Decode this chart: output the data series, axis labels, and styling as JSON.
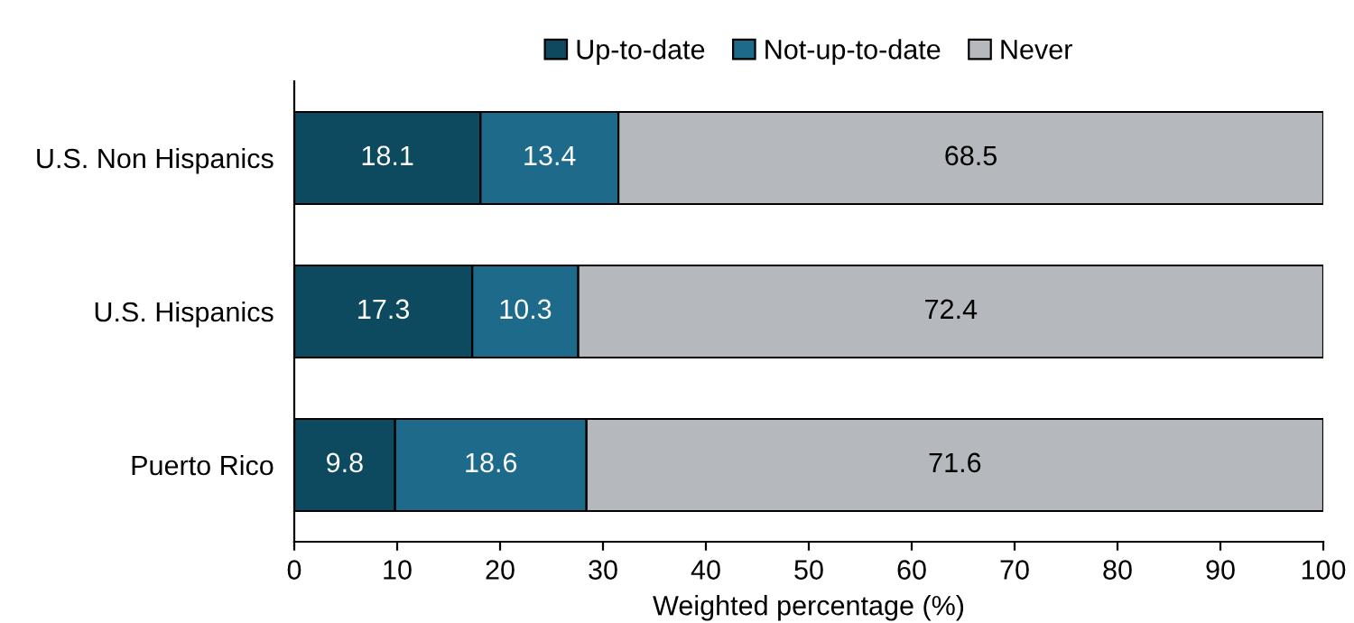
{
  "chart_data": {
    "type": "bar",
    "orientation": "horizontal",
    "stacked": true,
    "categories": [
      "U.S. Non Hispanics",
      "U.S. Hispanics",
      "Puerto Rico"
    ],
    "series": [
      {
        "name": "Up-to-date",
        "color": "#0e4a5f",
        "values": [
          18.1,
          17.3,
          9.8
        ]
      },
      {
        "name": "Not-up-to-date",
        "color": "#1d6a8b",
        "values": [
          13.4,
          10.3,
          18.6
        ]
      },
      {
        "name": "Never",
        "color": "#b5b9bd",
        "values": [
          68.5,
          72.4,
          71.6
        ]
      }
    ],
    "xlabel": "Weighted percentage (%)",
    "xlim": [
      0,
      100
    ],
    "xticks": [
      0,
      10,
      20,
      30,
      40,
      50,
      60,
      70,
      80,
      90,
      100
    ],
    "data_labels": true,
    "grid": false,
    "legend": "top"
  }
}
